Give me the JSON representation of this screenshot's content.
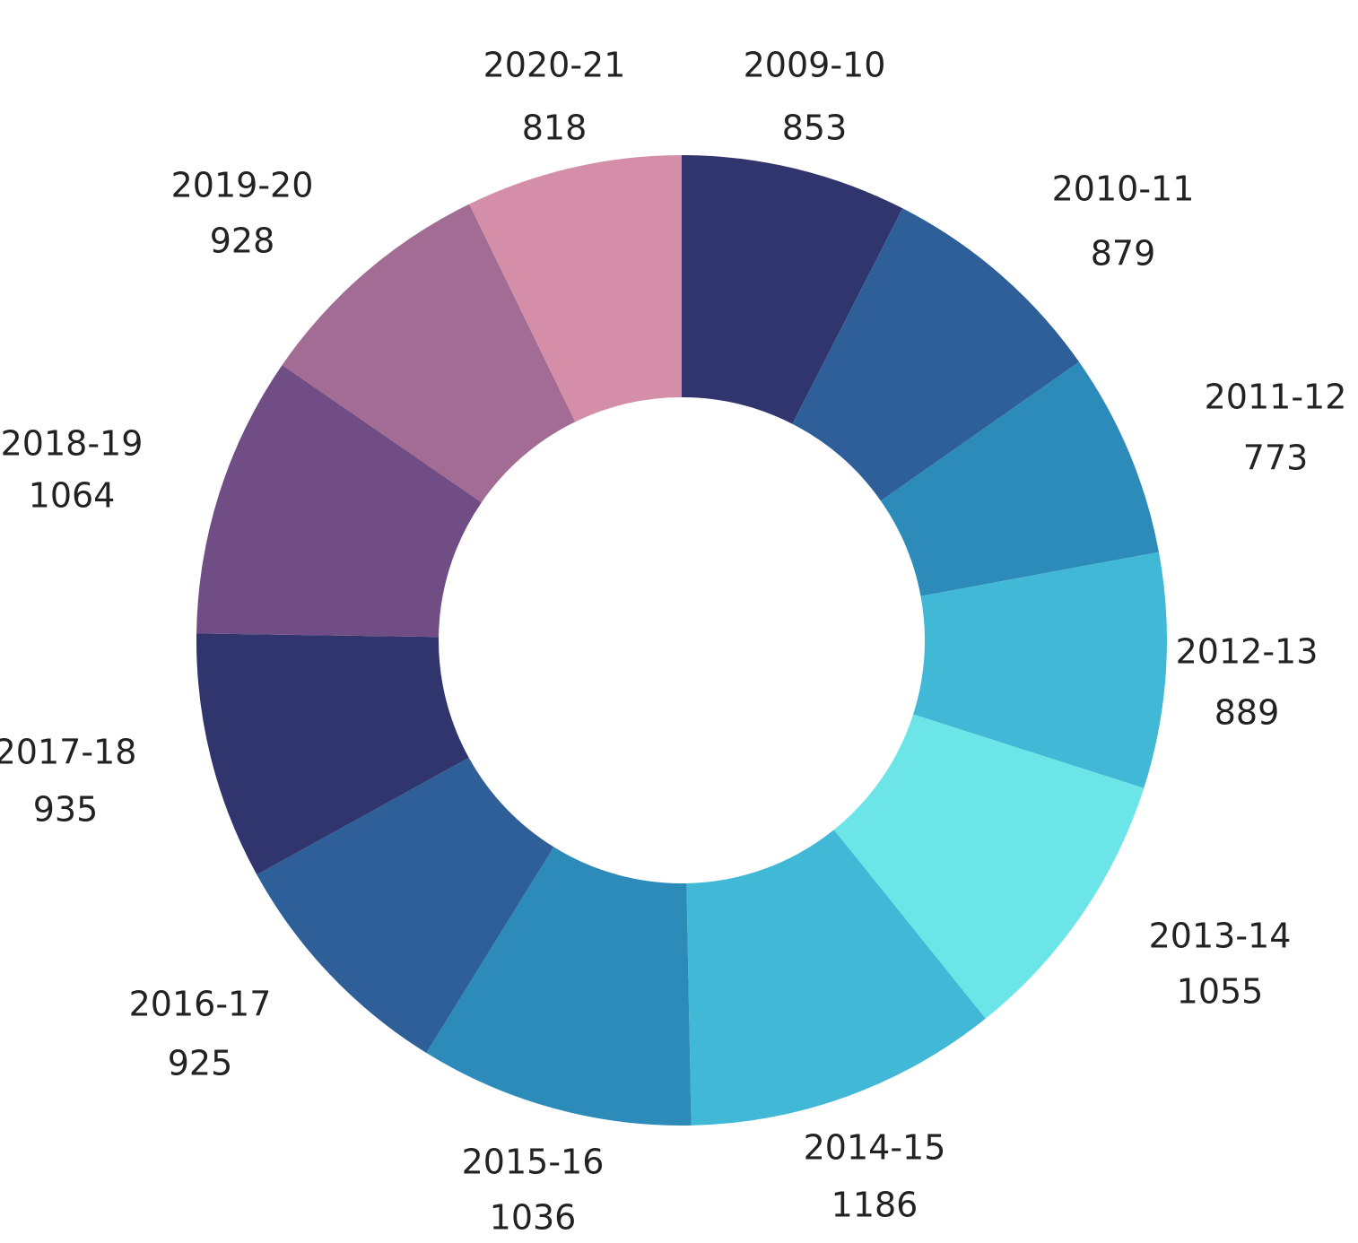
{
  "chart_data": {
    "type": "pie",
    "donut": true,
    "title": "",
    "categories": [
      "2009-10",
      "2010-11",
      "2011-12",
      "2012-13",
      "2013-14",
      "2014-15",
      "2015-16",
      "2016-17",
      "2017-18",
      "2018-19",
      "2019-20",
      "2020-21"
    ],
    "values": [
      853,
      879,
      773,
      889,
      1055,
      1186,
      1036,
      925,
      935,
      1064,
      928,
      818
    ],
    "colors": [
      "#31356e",
      "#2f5f98",
      "#2d8bba",
      "#41b8d5",
      "#6ce5e8",
      "#41b8d5",
      "#2d8bba",
      "#2f5f98",
      "#31356e",
      "#704e85",
      "#a36c95",
      "#d48ea8"
    ],
    "start_angle_deg": 0,
    "direction": "clockwise",
    "legend": "none",
    "data_labels": "category and value outside each slice"
  }
}
